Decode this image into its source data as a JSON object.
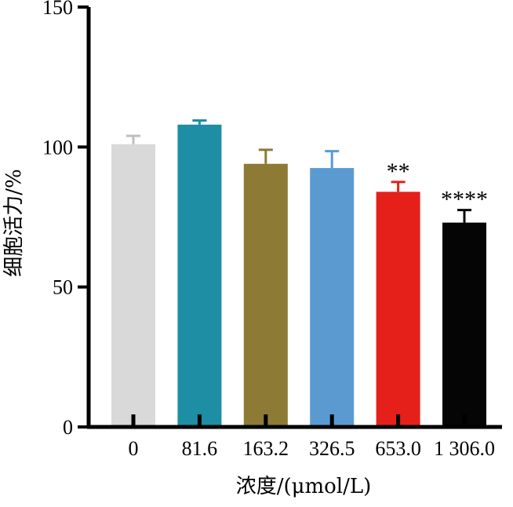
{
  "chart_data": {
    "type": "bar",
    "xlabel": "浓度/(μmol/L)",
    "ylabel": "细胞活力/%",
    "ylim": [
      0,
      150
    ],
    "yticks": [
      0,
      50,
      100,
      150
    ],
    "grid": false,
    "categories": [
      "0",
      "81.6",
      "163.2",
      "326.5",
      "653.0",
      "1 306.0"
    ],
    "values": [
      101,
      108,
      94,
      92.5,
      84,
      73
    ],
    "errors": [
      3,
      1.5,
      5,
      6,
      3.5,
      4.5
    ],
    "annotations": [
      "",
      "",
      "",
      "",
      "**",
      "****"
    ],
    "colors": [
      "#d9d9d9",
      "#1d8ea3",
      "#8c7a35",
      "#5b9ad1",
      "#e5201b",
      "#050505"
    ]
  }
}
